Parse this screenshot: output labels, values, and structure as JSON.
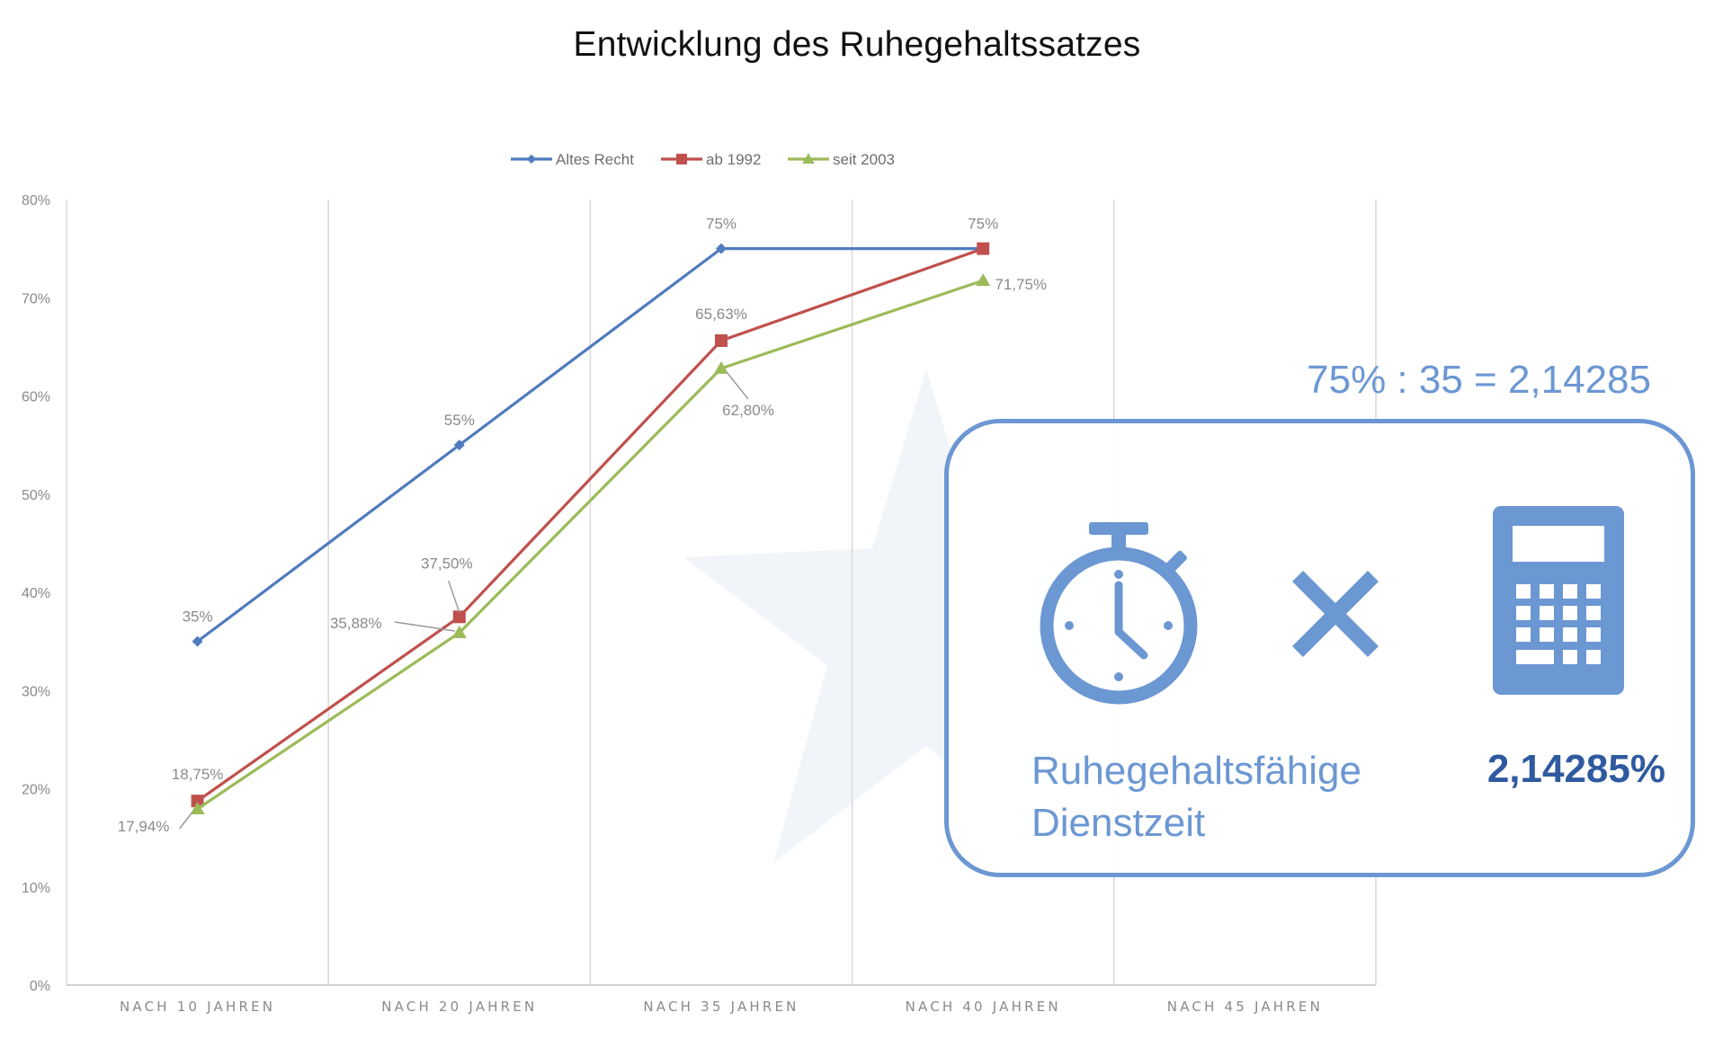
{
  "page": {
    "title": "Entwicklung des Ruhegehaltssatzes"
  },
  "chart_data": {
    "type": "line",
    "title": "Entwicklung des Ruhegehaltssatzes",
    "categories": [
      "NACH 10 JAHREN",
      "NACH 20 JAHREN",
      "NACH 35 JAHREN",
      "NACH 40 JAHREN",
      "NACH 45 JAHREN"
    ],
    "y_ticks": [
      "0%",
      "10%",
      "20%",
      "30%",
      "40%",
      "50%",
      "60%",
      "70%",
      "80%"
    ],
    "ylim": [
      0,
      80
    ],
    "grid": "vertical-category-lines",
    "legend_position": "top",
    "series": [
      {
        "name": "Altes Recht",
        "color": "#4f7bbf",
        "marker": "diamond",
        "values": [
          35,
          55,
          75,
          75,
          null
        ],
        "labels": [
          "35%",
          "55%",
          "75%",
          "75%",
          ""
        ]
      },
      {
        "name": "ab 1992",
        "color": "#c0504d",
        "marker": "square",
        "values": [
          18.75,
          37.5,
          65.63,
          75,
          null
        ],
        "labels": [
          "18,75%",
          "37,50%",
          "65,63%",
          "",
          ""
        ]
      },
      {
        "name": "seit 2003",
        "color": "#9bbb59",
        "marker": "triangle",
        "values": [
          17.94,
          35.88,
          62.8,
          71.75,
          null
        ],
        "labels": [
          "17,94%",
          "35,88%",
          "62,80%",
          "71,75%",
          ""
        ]
      }
    ]
  },
  "overlay": {
    "formula": "75% : 35 = 2,14285",
    "box_label": "Ruhegehaltsfähige Dienstzeit",
    "box_value": "2,14285%",
    "accent_color": "#6b97d3",
    "value_color": "#2f5aa0",
    "icons": [
      "stopwatch-icon",
      "times-icon",
      "calculator-icon"
    ]
  }
}
